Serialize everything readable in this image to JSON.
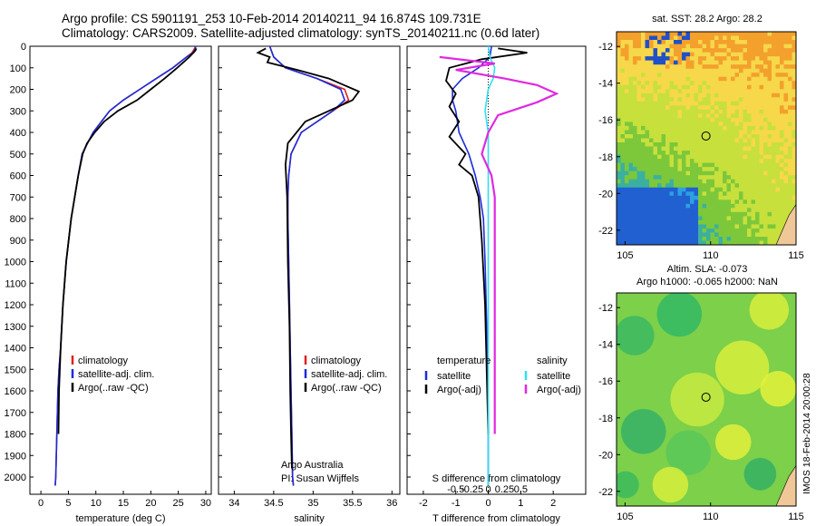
{
  "header": {
    "line1": "Argo profile: CS 5901191_253 10-Feb-2014 20140211_94 16.874S 109.731E",
    "line2": "Climatology: CARS2009. Satellite-adjusted climatology: synTS_20140211.nc (0.6d later)"
  },
  "side_label": "IMOS 18-Feb-2014 20:00:28",
  "colors": {
    "climatology": "#e02020",
    "satellite": "#1a2bdc",
    "argo": "#000000",
    "sat_salinity": "#30e0f0",
    "argo_salinity": "#e028e0"
  },
  "chart_data": [
    {
      "type": "line",
      "xlabel": "temperature (deg C)",
      "ylabel": "",
      "xlim": [
        -2,
        31
      ],
      "ylim": [
        2080,
        0
      ],
      "xticks": [
        0,
        5,
        10,
        15,
        20,
        25,
        30
      ],
      "yticks": [
        0,
        100,
        200,
        300,
        400,
        500,
        600,
        700,
        800,
        900,
        1000,
        1100,
        1200,
        1300,
        1400,
        1500,
        1600,
        1700,
        1800,
        1900,
        2000
      ],
      "legend": [
        "climatology",
        "satellite-adj. clim.",
        "Argo(..raw -QC)"
      ],
      "legend_position": "lower-middle",
      "series": [
        {
          "name": "climatology",
          "color": "#e02020",
          "x": [
            28.2,
            27.5,
            26.5,
            24,
            21,
            18,
            15,
            12.5,
            11,
            9.5,
            8.5,
            7.5,
            6.8,
            5.5,
            4.6,
            4,
            3.6,
            3.3,
            3.1,
            2.9,
            2.8,
            2.7,
            2.6
          ],
          "y": [
            0,
            30,
            50,
            100,
            150,
            200,
            250,
            300,
            350,
            400,
            450,
            500,
            600,
            800,
            1000,
            1200,
            1400,
            1500,
            1600,
            1800,
            1900,
            2000,
            2040
          ]
        },
        {
          "name": "satellite-adj. clim.",
          "color": "#1a2bdc",
          "x": [
            28.2,
            27.8,
            26.5,
            24,
            21,
            18,
            15,
            12.5,
            11,
            9.5,
            8.5,
            7.5,
            6.8,
            5.5,
            4.6,
            4,
            3.6,
            3.3,
            3.1,
            2.9,
            2.8,
            2.7,
            2.6
          ],
          "y": [
            0,
            30,
            50,
            100,
            150,
            200,
            250,
            300,
            350,
            400,
            450,
            500,
            600,
            800,
            1000,
            1200,
            1400,
            1500,
            1600,
            1800,
            1900,
            2000,
            2040
          ]
        },
        {
          "name": "Argo(..raw -QC)",
          "color": "#000000",
          "x": [
            28.3,
            28.1,
            27,
            24.8,
            22.5,
            20,
            17.5,
            14,
            11.5,
            9.8,
            8.4,
            7.6,
            6.8,
            5.5,
            4.6,
            4,
            3.6,
            3.3,
            3.2
          ],
          "y": [
            10,
            20,
            50,
            100,
            150,
            200,
            250,
            300,
            350,
            400,
            450,
            500,
            600,
            800,
            1000,
            1200,
            1400,
            1600,
            1800
          ]
        }
      ]
    },
    {
      "type": "line",
      "xlabel": "salinity",
      "xlim": [
        33.8,
        36.1
      ],
      "ylim": [
        2080,
        0
      ],
      "xticks": [
        34,
        34.5,
        35,
        35.5,
        36
      ],
      "legend": [
        "climatology",
        "satellite-adj. clim.",
        "Argo(..raw -QC)"
      ],
      "legend_position": "lower-right",
      "annotations": [
        "Argo Australia",
        "PI: Susan Wijffels"
      ],
      "series": [
        {
          "name": "climatology",
          "color": "#e02020",
          "x": [
            34.45,
            34.5,
            34.65,
            35.05,
            35.4,
            35.45,
            35.25,
            34.85,
            34.72,
            34.69,
            34.68,
            34.68,
            34.69,
            34.7,
            34.71,
            34.72,
            34.73,
            34.74,
            34.75
          ],
          "y": [
            0,
            50,
            100,
            150,
            200,
            250,
            300,
            400,
            500,
            600,
            700,
            800,
            1000,
            1200,
            1400,
            1600,
            1800,
            2000,
            2040
          ]
        },
        {
          "name": "satellite-adj. clim.",
          "color": "#1a2bdc",
          "x": [
            34.45,
            34.5,
            34.65,
            35.05,
            35.35,
            35.4,
            35.25,
            34.85,
            34.72,
            34.69,
            34.68,
            34.68,
            34.69,
            34.7,
            34.71,
            34.72,
            34.73,
            34.74,
            34.75
          ],
          "y": [
            0,
            50,
            100,
            150,
            200,
            250,
            300,
            400,
            500,
            600,
            700,
            800,
            1000,
            1200,
            1400,
            1600,
            1800,
            2000,
            2040
          ]
        },
        {
          "name": "Argo(..raw -QC)",
          "color": "#000000",
          "x": [
            34.4,
            34.3,
            34.45,
            34.42,
            34.8,
            35.2,
            35.58,
            35.5,
            35.2,
            34.9,
            34.68,
            34.65,
            34.67,
            34.68,
            34.7,
            34.71,
            34.72,
            34.73
          ],
          "y": [
            10,
            30,
            50,
            75,
            110,
            150,
            210,
            250,
            300,
            350,
            450,
            550,
            700,
            1000,
            1300,
            1600,
            1800,
            1960
          ]
        }
      ]
    },
    {
      "type": "line",
      "xlabel": "T difference from climatology",
      "xlabel_top": "S difference from climatology",
      "xlim": [
        -2.5,
        3
      ],
      "ylim": [
        2080,
        0
      ],
      "xticks": [
        -2,
        -1,
        0,
        1,
        2
      ],
      "xticks_top_labels": [
        "-0.5",
        "-0.25",
        "0",
        "0.25",
        "0.5"
      ],
      "legend": [
        "temperature",
        "satellite",
        "Argo(-adj)",
        "salinity",
        "satellite",
        "Argo(-adj)"
      ],
      "legend_position": "lower",
      "series": [
        {
          "name": "satellite",
          "group": "temperature",
          "color": "#1a2bdc",
          "x": [
            0.1,
            0.05,
            -0.3,
            -0.8,
            -1.1,
            -1.1,
            -1.0,
            -0.9,
            -0.6,
            -0.4,
            -0.25,
            -0.15,
            -0.1,
            -0.05,
            0,
            0
          ],
          "y": [
            0,
            50,
            100,
            150,
            200,
            250,
            300,
            400,
            500,
            600,
            700,
            800,
            1000,
            1300,
            1700,
            2040
          ]
        },
        {
          "name": "Argo(-adj)",
          "group": "temperature",
          "color": "#000000",
          "x": [
            0.3,
            1.2,
            -0.2,
            -1.2,
            -1.3,
            -1.0,
            -1.2,
            -0.9,
            -1.2,
            -0.7,
            -0.9,
            -0.5,
            -0.3,
            -0.2,
            -0.1,
            0
          ],
          "y": [
            10,
            30,
            60,
            100,
            160,
            220,
            280,
            350,
            420,
            500,
            550,
            600,
            700,
            900,
            1200,
            1800
          ]
        },
        {
          "name": "satellite",
          "group": "salinity",
          "color": "#30e0f0",
          "x": [
            0,
            0.05,
            0.2,
            0.15,
            0,
            -0.1,
            0,
            0,
            0,
            0,
            0
          ],
          "y": [
            0,
            50,
            100,
            150,
            200,
            300,
            400,
            600,
            1000,
            1500,
            2040
          ]
        },
        {
          "name": "Argo(-adj)",
          "group": "salinity",
          "color": "#e028e0",
          "x": [
            -1.5,
            0.2,
            -1.0,
            0.5,
            1.5,
            2.1,
            1.5,
            0.3,
            0.0,
            -0.2,
            0.1,
            0.2,
            0.2
          ],
          "y": [
            50,
            80,
            110,
            150,
            180,
            220,
            260,
            320,
            400,
            500,
            600,
            700,
            1800
          ]
        }
      ]
    },
    {
      "type": "heatmap",
      "title": "sat. SST: 28.2  Argo: 28.2",
      "xlim": [
        104.5,
        115
      ],
      "ylim": [
        -22.8,
        -11.2
      ],
      "xticks": [
        105,
        110,
        115
      ],
      "yticks": [
        -12,
        -14,
        -16,
        -18,
        -20,
        -22
      ],
      "marker": {
        "x": 109.731,
        "y": -16.874
      }
    },
    {
      "type": "heatmap",
      "title_line1": "Altim. SLA: -0.073",
      "title_line2": "Argo h1000: -0.065 h2000: NaN",
      "xlim": [
        104.5,
        115
      ],
      "ylim": [
        -22.8,
        -11.2
      ],
      "xticks": [
        105,
        110,
        115
      ],
      "yticks": [
        -12,
        -14,
        -16,
        -18,
        -20,
        -22
      ],
      "marker": {
        "x": 109.731,
        "y": -16.874
      }
    }
  ]
}
